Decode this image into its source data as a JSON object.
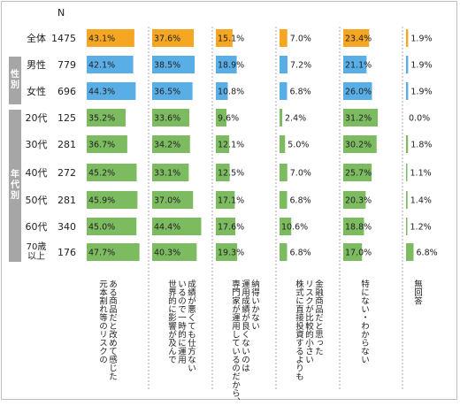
{
  "n_header": "N",
  "groups": {
    "gender": "性別",
    "age": "年代別"
  },
  "rows": [
    {
      "name": "全体",
      "n": "1475"
    },
    {
      "name": "男性",
      "n": "779"
    },
    {
      "name": "女性",
      "n": "696"
    },
    {
      "name": "20代",
      "n": "125"
    },
    {
      "name": "30代",
      "n": "281"
    },
    {
      "name": "40代",
      "n": "272"
    },
    {
      "name": "50代",
      "n": "281"
    },
    {
      "name": "60代",
      "n": "340"
    },
    {
      "name": "70歳\n以上",
      "n": "176"
    }
  ],
  "colors": {
    "total": "#f5a623",
    "gender": "#5aaee6",
    "age": "#7dbb60",
    "separator": "#999999"
  },
  "chart_data": {
    "type": "bar",
    "categories": [
      "ある商品だと改めて感じた\n元本割れ等のリスクの",
      "成績が悪くても仕方ない\nいるので一時的に運用\n世界的に影響が及んで",
      "納得いかない\n運用成績が良くないのは\n専門家が運用しているのだから、",
      "金融商品だと思った\nリスクが比較的小さい\n株式に直接投資するよりも",
      "特にない・わからない",
      "無回答"
    ],
    "series": [
      {
        "name": "全体",
        "values": [
          43.1,
          37.6,
          15.1,
          7.0,
          23.4,
          1.9
        ]
      },
      {
        "name": "男性",
        "values": [
          42.1,
          38.5,
          18.9,
          7.2,
          21.1,
          1.9
        ]
      },
      {
        "name": "女性",
        "values": [
          44.3,
          36.5,
          10.8,
          6.8,
          26.0,
          1.9
        ]
      },
      {
        "name": "20代",
        "values": [
          35.2,
          33.6,
          9.6,
          2.4,
          31.2,
          0.0
        ]
      },
      {
        "name": "30代",
        "values": [
          36.7,
          34.2,
          12.1,
          5.0,
          30.2,
          1.8
        ]
      },
      {
        "name": "40代",
        "values": [
          45.2,
          33.1,
          12.5,
          7.0,
          25.7,
          1.1
        ]
      },
      {
        "name": "50代",
        "values": [
          45.9,
          37.0,
          17.1,
          6.8,
          20.3,
          1.4
        ]
      },
      {
        "name": "60代",
        "values": [
          45.0,
          44.4,
          17.6,
          10.6,
          18.8,
          1.2
        ]
      },
      {
        "name": "70歳以上",
        "values": [
          47.7,
          40.3,
          19.3,
          6.8,
          17.0,
          6.8
        ]
      }
    ],
    "unit": "%"
  }
}
